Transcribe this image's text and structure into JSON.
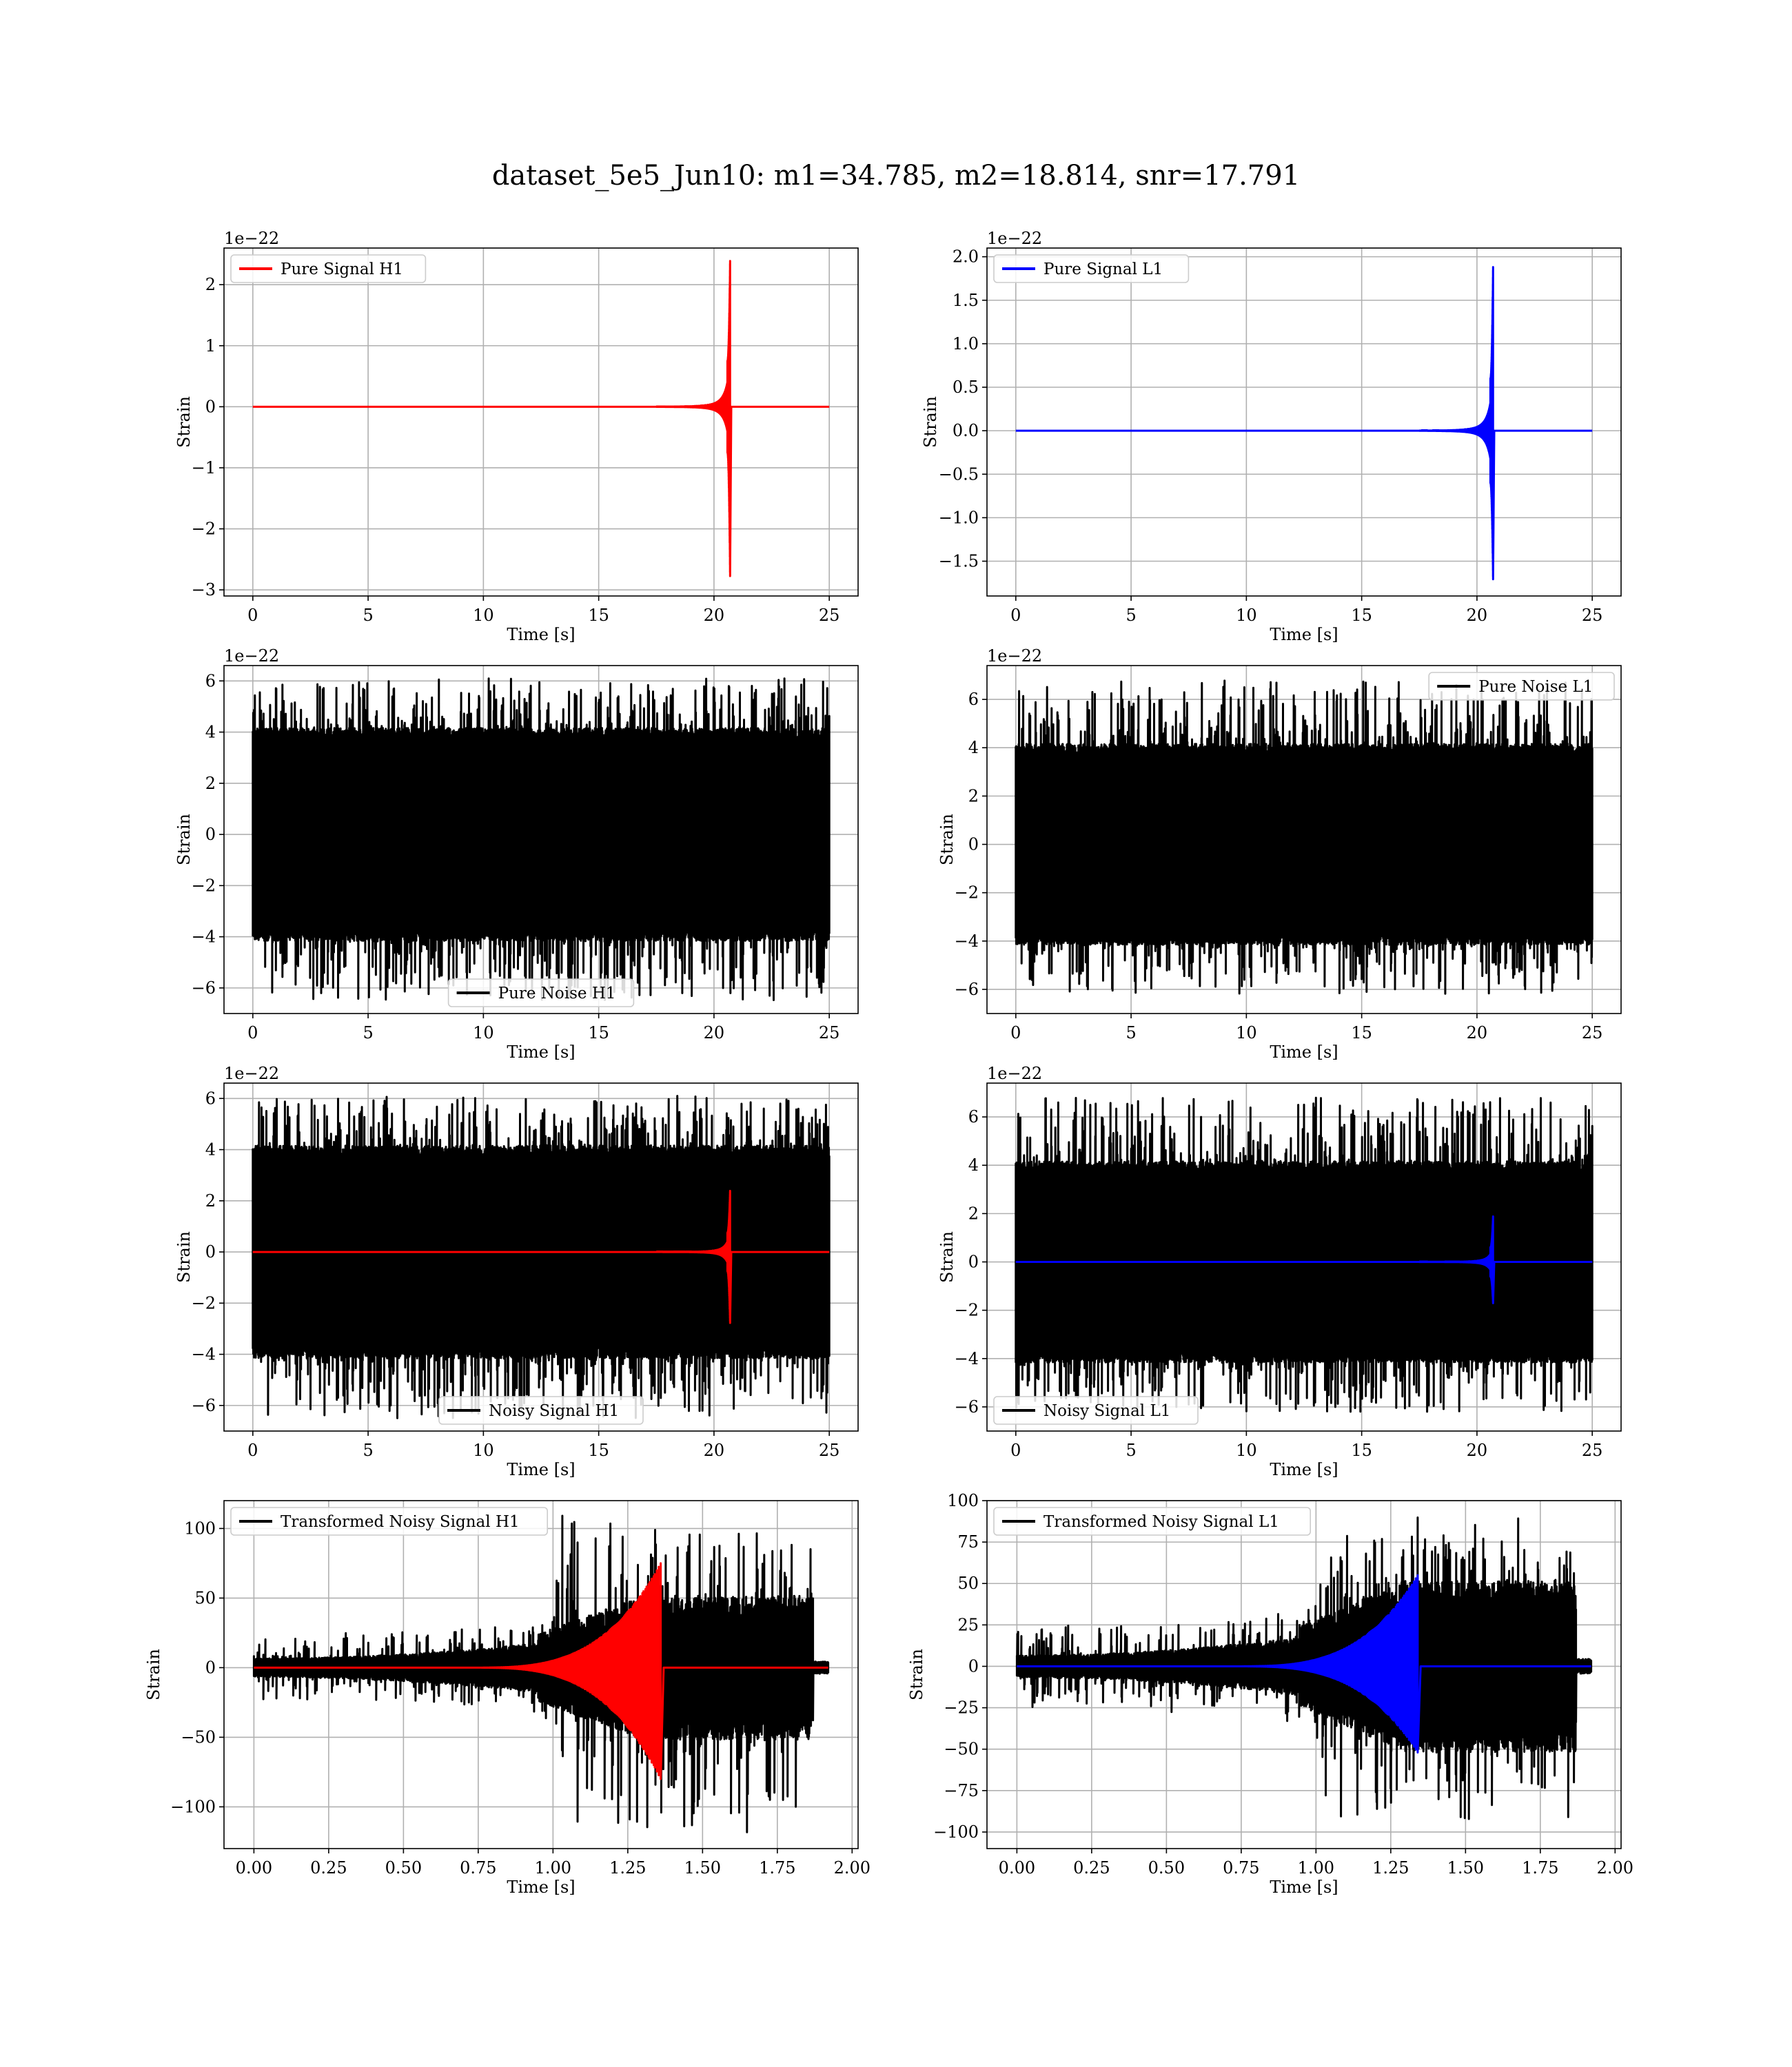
{
  "figure": {
    "suptitle": "dataset_5e5_Jun10: m1=34.785, m2=18.814, snr=17.791"
  },
  "chart_data": [
    {
      "id": "pure-signal-h1",
      "type": "line",
      "xlabel": "Time [s]",
      "ylabel": "Strain",
      "offset_text": "1e−22",
      "xlim": [
        -1.25,
        26.25
      ],
      "ylim": [
        -3.1,
        2.6
      ],
      "xticks": [
        0,
        5,
        10,
        15,
        20,
        25
      ],
      "yticks": [
        -3,
        -2,
        -1,
        0,
        1,
        2
      ],
      "grid": true,
      "legend_loc": "upper-left",
      "series": [
        {
          "name": "Pure Signal H1",
          "color": "#ff0000",
          "kind": "chirp",
          "x_range": [
            0,
            25
          ],
          "t_merge": 20.7,
          "peak_pos": 2.45,
          "peak_neg": -2.85,
          "precursor": 0.75
        }
      ]
    },
    {
      "id": "pure-signal-l1",
      "type": "line",
      "xlabel": "Time [s]",
      "ylabel": "Strain",
      "offset_text": "1e−22",
      "xlim": [
        -1.25,
        26.25
      ],
      "ylim": [
        -1.9,
        2.1
      ],
      "xticks": [
        0,
        5,
        10,
        15,
        20,
        25
      ],
      "yticks": [
        -1.5,
        -1.0,
        -0.5,
        0.0,
        0.5,
        1.0,
        1.5,
        2.0
      ],
      "grid": true,
      "legend_loc": "upper-left",
      "series": [
        {
          "name": "Pure Signal L1",
          "color": "#0000ff",
          "kind": "chirp",
          "x_range": [
            0,
            25
          ],
          "t_merge": 20.7,
          "peak_pos": 1.93,
          "peak_neg": -1.75,
          "precursor": 0.6
        }
      ]
    },
    {
      "id": "pure-noise-h1",
      "type": "line",
      "xlabel": "Time [s]",
      "ylabel": "Strain",
      "offset_text": "1e−22",
      "xlim": [
        -1.25,
        26.25
      ],
      "ylim": [
        -7.0,
        6.6
      ],
      "xticks": [
        0,
        5,
        10,
        15,
        20,
        25
      ],
      "yticks": [
        -6,
        -4,
        -2,
        0,
        2,
        4,
        6
      ],
      "grid": true,
      "legend_loc": "lower-center",
      "series": [
        {
          "name": "Pure Noise H1",
          "color": "#000000",
          "kind": "noise",
          "x_range": [
            0,
            25
          ],
          "band": 4.0,
          "spike_max": 6.1,
          "spike_min": -6.5
        }
      ]
    },
    {
      "id": "pure-noise-l1",
      "type": "line",
      "xlabel": "Time [s]",
      "ylabel": "Strain",
      "offset_text": "1e−22",
      "xlim": [
        -1.25,
        26.25
      ],
      "ylim": [
        -7.0,
        7.4
      ],
      "xticks": [
        0,
        5,
        10,
        15,
        20,
        25
      ],
      "yticks": [
        -6,
        -4,
        -2,
        0,
        2,
        4,
        6
      ],
      "grid": true,
      "legend_loc": "upper-right",
      "series": [
        {
          "name": "Pure Noise L1",
          "color": "#000000",
          "kind": "noise",
          "x_range": [
            0,
            25
          ],
          "band": 4.0,
          "spike_max": 6.8,
          "spike_min": -6.2
        }
      ]
    },
    {
      "id": "noisy-signal-h1",
      "type": "line",
      "xlabel": "Time [s]",
      "ylabel": "Strain",
      "offset_text": "1e−22",
      "xlim": [
        -1.25,
        26.25
      ],
      "ylim": [
        -7.0,
        6.6
      ],
      "xticks": [
        0,
        5,
        10,
        15,
        20,
        25
      ],
      "yticks": [
        -6,
        -4,
        -2,
        0,
        2,
        4,
        6
      ],
      "grid": true,
      "legend_loc": "lower-center",
      "series": [
        {
          "name": "Noisy Signal H1",
          "color": "#000000",
          "kind": "noise",
          "x_range": [
            0,
            25
          ],
          "band": 4.0,
          "spike_max": 6.1,
          "spike_min": -6.5
        },
        {
          "name": "",
          "color": "#ff0000",
          "kind": "chirp",
          "x_range": [
            0,
            25
          ],
          "t_merge": 20.7,
          "peak_pos": 2.45,
          "peak_neg": -2.85,
          "precursor": 0.75
        }
      ]
    },
    {
      "id": "noisy-signal-l1",
      "type": "line",
      "xlabel": "Time [s]",
      "ylabel": "Strain",
      "offset_text": "1e−22",
      "xlim": [
        -1.25,
        26.25
      ],
      "ylim": [
        -7.0,
        7.4
      ],
      "xticks": [
        0,
        5,
        10,
        15,
        20,
        25
      ],
      "yticks": [
        -6,
        -4,
        -2,
        0,
        2,
        4,
        6
      ],
      "grid": true,
      "legend_loc": "lower-left",
      "series": [
        {
          "name": "Noisy Signal L1",
          "color": "#000000",
          "kind": "noise",
          "x_range": [
            0,
            25
          ],
          "band": 4.0,
          "spike_max": 6.8,
          "spike_min": -6.2
        },
        {
          "name": "",
          "color": "#0000ff",
          "kind": "chirp",
          "x_range": [
            0,
            25
          ],
          "t_merge": 20.7,
          "peak_pos": 1.93,
          "peak_neg": -1.75,
          "precursor": 0.6
        }
      ]
    },
    {
      "id": "transformed-noisy-signal-h1",
      "type": "line",
      "xlabel": "Time [s]",
      "ylabel": "Strain",
      "offset_text": "",
      "xlim": [
        -0.1,
        2.02
      ],
      "ylim": [
        -130,
        120
      ],
      "xticks": [
        0.0,
        0.25,
        0.5,
        0.75,
        1.0,
        1.25,
        1.5,
        1.75,
        2.0
      ],
      "xtick_labels": [
        "0.00",
        "0.25",
        "0.50",
        "0.75",
        "1.00",
        "1.25",
        "1.50",
        "1.75",
        "2.00"
      ],
      "yticks": [
        -100,
        -50,
        0,
        50,
        100
      ],
      "grid": true,
      "legend_loc": "upper-left",
      "series": [
        {
          "name": "Transformed Noisy Signal H1",
          "color": "#000000",
          "kind": "whitened",
          "x_range": [
            0,
            1.92
          ],
          "t_merge": 1.35,
          "max": 110,
          "min": -122
        },
        {
          "name": "",
          "color": "#ff0000",
          "kind": "whitened-chirp",
          "x_range": [
            0,
            1.92
          ],
          "t_merge": 1.36,
          "peak_pos": 75,
          "peak_neg": -80
        }
      ]
    },
    {
      "id": "transformed-noisy-signal-l1",
      "type": "line",
      "xlabel": "Time [s]",
      "ylabel": "Strain",
      "offset_text": "",
      "xlim": [
        -0.1,
        2.02
      ],
      "ylim": [
        -110,
        100
      ],
      "xticks": [
        0.0,
        0.25,
        0.5,
        0.75,
        1.0,
        1.25,
        1.5,
        1.75,
        2.0
      ],
      "xtick_labels": [
        "0.00",
        "0.25",
        "0.50",
        "0.75",
        "1.00",
        "1.25",
        "1.50",
        "1.75",
        "2.00"
      ],
      "yticks": [
        -100,
        -75,
        -50,
        -25,
        0,
        25,
        50,
        75,
        100
      ],
      "grid": true,
      "legend_loc": "upper-left",
      "series": [
        {
          "name": "Transformed Noisy Signal L1",
          "color": "#000000",
          "kind": "whitened",
          "x_range": [
            0,
            1.92
          ],
          "t_merge": 1.35,
          "max": 88,
          "min": -102
        },
        {
          "name": "",
          "color": "#0000ff",
          "kind": "whitened-chirp",
          "x_range": [
            0,
            1.92
          ],
          "t_merge": 1.34,
          "peak_pos": 55,
          "peak_neg": -52
        }
      ]
    }
  ]
}
